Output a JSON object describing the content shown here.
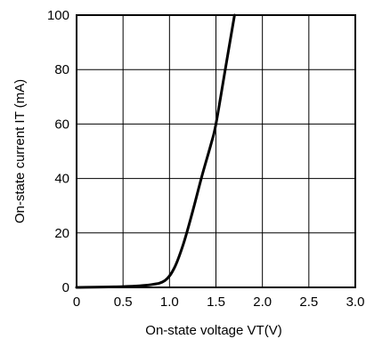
{
  "chart_data": {
    "type": "line",
    "title": "",
    "xlabel": "On-state voltage VT(V)",
    "ylabel": "On-state current IT (mA)",
    "xlim": [
      0,
      3.0
    ],
    "ylim": [
      0,
      100
    ],
    "grid": true,
    "x_ticks": [
      "0",
      "0.5",
      "1.0",
      "1.5",
      "2.0",
      "2.5",
      "3.0"
    ],
    "y_ticks": [
      "0",
      "20",
      "40",
      "60",
      "80",
      "100"
    ],
    "series": [
      {
        "name": "",
        "color": "#000000",
        "x": [
          0,
          0.5,
          0.8,
          0.95,
          1.05,
          1.15,
          1.25,
          1.35,
          1.45,
          1.5,
          1.6,
          1.7
        ],
        "y": [
          0,
          0.3,
          1,
          2.5,
          7,
          16,
          28,
          41,
          53,
          60,
          80,
          100
        ]
      }
    ]
  }
}
